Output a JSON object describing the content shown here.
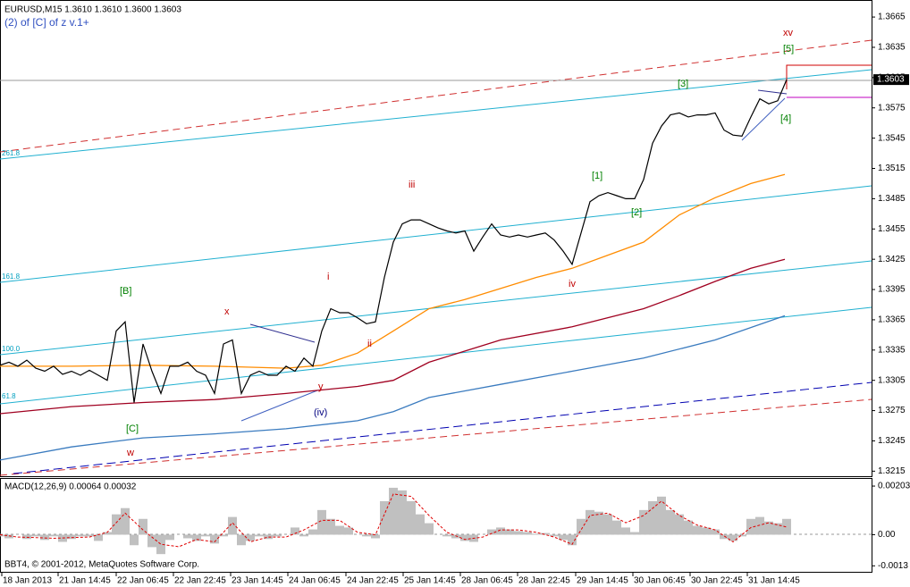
{
  "chart_data": [
    {
      "type": "line",
      "title": "EURUSD,M15  1.3610 1.3610 1.3600 1.3603",
      "subtitle": "(2) of [C] of z v.1+",
      "xlim": [
        0,
        975
      ],
      "ylim": [
        1.321,
        1.3681
      ],
      "yticks": [
        1.3665,
        1.3635,
        1.3605,
        1.3575,
        1.3545,
        1.3515,
        1.3485,
        1.3455,
        1.3425,
        1.3395,
        1.3365,
        1.3335,
        1.3305,
        1.3275,
        1.3245,
        1.3215
      ],
      "xticks": [
        {
          "value": 2,
          "label": "18 Jan 2013"
        },
        {
          "value": 65,
          "label": "21 Jan 14:45"
        },
        {
          "value": 130,
          "label": "22 Jan 06:45"
        },
        {
          "value": 194,
          "label": "22 Jan 22:45"
        },
        {
          "value": 258,
          "label": "23 Jan 14:45"
        },
        {
          "value": 322,
          "label": "24 Jan 06:45"
        },
        {
          "value": 387,
          "label": "24 Jan 22:45"
        },
        {
          "value": 451,
          "label": "25 Jan 14:45"
        },
        {
          "value": 515,
          "label": "28 Jan 06:45"
        },
        {
          "value": 579,
          "label": "28 Jan 22:45"
        },
        {
          "value": 644,
          "label": "29 Jan 14:45"
        },
        {
          "value": 708,
          "label": "30 Jan 06:45"
        },
        {
          "value": 772,
          "label": "30 Jan 22:45"
        },
        {
          "value": 836,
          "label": "31 Jan 14:45"
        }
      ],
      "series": [
        {
          "color": "#000000",
          "x": [
            0,
            10,
            20,
            30,
            40,
            50,
            60,
            70,
            80,
            90,
            100,
            110,
            120,
            130,
            140,
            150,
            160,
            170,
            180,
            190,
            200,
            210,
            220,
            230,
            240,
            250,
            260,
            270,
            280,
            290,
            300,
            310,
            320,
            330,
            340,
            350,
            360,
            370,
            380,
            390,
            400,
            410,
            420,
            430,
            440,
            450,
            460,
            470,
            480,
            490,
            500,
            510,
            520,
            530,
            540,
            550,
            560,
            570,
            580,
            590,
            600,
            610,
            620,
            630,
            640,
            650,
            660,
            670,
            680,
            690,
            700,
            710,
            720,
            730,
            740,
            750,
            760,
            770,
            780,
            790,
            800,
            810,
            820,
            830,
            840,
            850,
            860,
            870,
            880
          ],
          "values": [
            1.332,
            1.3323,
            1.3319,
            1.3325,
            1.3317,
            1.3314,
            1.3319,
            1.3311,
            1.3314,
            1.331,
            1.3315,
            1.331,
            1.3305,
            1.3354,
            1.3363,
            1.3283,
            1.3341,
            1.3314,
            1.3292,
            1.3319,
            1.3319,
            1.3323,
            1.3314,
            1.331,
            1.3292,
            1.3341,
            1.3345,
            1.3292,
            1.331,
            1.3314,
            1.331,
            1.331,
            1.3319,
            1.3314,
            1.3327,
            1.3319,
            1.3354,
            1.3376,
            1.3372,
            1.3372,
            1.3367,
            1.3361,
            1.3363,
            1.3407,
            1.3442,
            1.346,
            1.3464,
            1.3464,
            1.346,
            1.3456,
            1.3453,
            1.3451,
            1.3453,
            1.3433,
            1.3447,
            1.346,
            1.3449,
            1.3447,
            1.3449,
            1.3447,
            1.3449,
            1.3451,
            1.3444,
            1.3433,
            1.342,
            1.3451,
            1.3482,
            1.3488,
            1.3491,
            1.3488,
            1.3485,
            1.3485,
            1.3504,
            1.354,
            1.3557,
            1.3568,
            1.357,
            1.3566,
            1.3568,
            1.3568,
            1.357,
            1.3553,
            1.3548,
            1.3547,
            1.3566,
            1.3584,
            1.3579,
            1.3582,
            1.3603
          ]
        },
        {
          "color": "#ff8c00",
          "x": [
            0,
            80,
            160,
            240,
            320,
            360,
            400,
            440,
            480,
            520,
            560,
            600,
            640,
            680,
            720,
            760,
            800,
            840,
            878
          ],
          "values": [
            1.3319,
            1.3319,
            1.332,
            1.3319,
            1.3317,
            1.332,
            1.3332,
            1.3354,
            1.3376,
            1.3385,
            1.3396,
            1.3407,
            1.3416,
            1.3429,
            1.3442,
            1.3469,
            1.3486,
            1.35,
            1.3509
          ]
        },
        {
          "color": "#a00020",
          "x": [
            0,
            80,
            160,
            240,
            320,
            400,
            440,
            480,
            560,
            640,
            720,
            760,
            800,
            840,
            878
          ],
          "values": [
            1.3272,
            1.3279,
            1.3283,
            1.3286,
            1.3292,
            1.3299,
            1.3305,
            1.3323,
            1.3345,
            1.3358,
            1.3376,
            1.3389,
            1.3403,
            1.3416,
            1.3425
          ]
        },
        {
          "color": "#3a7bbf",
          "x": [
            0,
            80,
            160,
            240,
            320,
            400,
            440,
            480,
            560,
            640,
            720,
            800,
            878
          ],
          "values": [
            1.3226,
            1.3239,
            1.3248,
            1.3252,
            1.3257,
            1.3265,
            1.3274,
            1.3288,
            1.3301,
            1.3314,
            1.3327,
            1.3345,
            1.3369
          ]
        }
      ],
      "annotations": [
        {
          "text": "xv",
          "color": "#c00000"
        },
        {
          "text": "[5]",
          "color": "#008000"
        },
        {
          "text": "[3]",
          "color": "#008000"
        },
        {
          "text": "[4]",
          "color": "#008000"
        },
        {
          "text": "[1]",
          "color": "#008000"
        },
        {
          "text": "[2]",
          "color": "#008000"
        },
        {
          "text": "iii",
          "color": "#c00000"
        },
        {
          "text": "iv",
          "color": "#c00000"
        },
        {
          "text": "i",
          "color": "#c00000"
        },
        {
          "text": "ii",
          "color": "#c00000"
        },
        {
          "text": "x",
          "color": "#c00000"
        },
        {
          "text": "y",
          "color": "#c00000"
        },
        {
          "text": "(iv)",
          "color": "#000080"
        },
        {
          "text": "[B]",
          "color": "#008000"
        },
        {
          "text": "[C]",
          "color": "#008000"
        },
        {
          "text": "w",
          "color": "#c00000"
        },
        {
          "text": "261.8",
          "color": "#00a0c0"
        },
        {
          "text": "161.8",
          "color": "#00a0c0"
        },
        {
          "text": "100.0",
          "color": "#00a0c0"
        },
        {
          "text": "61.8",
          "color": "#00a0c0"
        }
      ]
    },
    {
      "type": "macd",
      "title": "MACD(12,26,9) 0.00064 0.00032",
      "xlim": [
        0,
        975
      ],
      "ylim": [
        -0.00155,
        0.00233
      ],
      "yticks": [
        0.00203,
        {
          "value": 0,
          "label": "0.00"
        },
        -0.0013
      ],
      "series": [
        {
          "color": "#c0c0c0",
          "x": [
            0,
            10,
            20,
            30,
            40,
            50,
            60,
            70,
            80,
            90,
            100,
            110,
            120,
            130,
            140,
            150,
            160,
            170,
            180,
            190,
            200,
            210,
            220,
            230,
            240,
            250,
            260,
            270,
            280,
            290,
            300,
            310,
            320,
            330,
            340,
            350,
            360,
            370,
            380,
            390,
            400,
            410,
            420,
            430,
            440,
            450,
            460,
            470,
            480,
            490,
            500,
            510,
            520,
            530,
            540,
            550,
            560,
            570,
            580,
            590,
            600,
            610,
            620,
            630,
            640,
            650,
            660,
            670,
            680,
            690,
            700,
            710,
            720,
            730,
            740,
            750,
            760,
            770,
            780,
            790,
            800,
            810,
            820,
            830,
            840,
            850,
            860,
            870,
            880
          ],
          "values": [
            -7e-05,
            -0.00015,
            0,
            -0.00018,
            -7e-05,
            -0.00022,
            -7e-05,
            -0.0003,
            -0.00018,
            -7e-05,
            -7e-05,
            -0.00026,
            0.00011,
            0.00085,
            0.00111,
            -0.00044,
            0.00066,
            -0.00052,
            -0.00081,
            -0.00022,
            0,
            -0.00015,
            -0.00026,
            -7e-05,
            -0.00037,
            -7e-05,
            0.00074,
            -0.00044,
            -0.00026,
            -7e-05,
            -0.00018,
            -7e-05,
            0,
            0.0003,
            -7e-05,
            0.00022,
            0.00103,
            0.00066,
            0.00037,
            0.0003,
            0,
            -7e-05,
            -0.00015,
            0.0014,
            0.00196,
            0.00185,
            0.0014,
            0.00085,
            0.00048,
            0,
            -7e-05,
            -0.00015,
            -0.00026,
            -0.0003,
            0,
            0.00022,
            0.0003,
            0.00022,
            0.00015,
            0.00011,
            4e-05,
            7e-05,
            -7e-05,
            -0.00022,
            -0.00044,
            0.00066,
            0.00103,
            0.00096,
            0.00085,
            0.00059,
            0.0003,
            0.00011,
            0.00103,
            0.0014,
            0.00159,
            0.00103,
            0.00085,
            0.00059,
            0.00037,
            0.0003,
            0.00022,
            -0.00018,
            -0.00026,
            -7e-05,
            0.00066,
            0.00074,
            0.00055,
            0.00048,
            0.00066
          ]
        },
        {
          "color": "#e00000",
          "x": [
            0,
            20,
            40,
            60,
            80,
            100,
            120,
            140,
            160,
            180,
            200,
            220,
            240,
            260,
            280,
            300,
            320,
            340,
            360,
            380,
            400,
            420,
            440,
            460,
            480,
            500,
            520,
            540,
            560,
            580,
            600,
            620,
            640,
            660,
            680,
            700,
            720,
            740,
            760,
            780,
            800,
            820,
            840,
            860,
            880
          ],
          "values": [
            0,
            -0.0001,
            -0.00012,
            -0.00015,
            -0.00012,
            -0.0001,
            0.0001,
            0.0009,
            0.0002,
            -0.0004,
            -0.0005,
            -0.0002,
            -0.0003,
            0.0005,
            -0.0003,
            -0.0001,
            -0.0001,
            0.0002,
            0.0006,
            0.0006,
            0.0001,
            0,
            0.0017,
            0.0016,
            0.0008,
            0.0001,
            -0.0002,
            -0.0001,
            0.0002,
            0.0002,
            0.0001,
            -0.0001,
            -0.0004,
            0.0008,
            0.0009,
            0.0005,
            0.0008,
            0.0014,
            0.0008,
            0.0004,
            0.0002,
            -0.0003,
            0.0003,
            0.0005,
            0.00032
          ]
        }
      ],
      "footer": "BBT4, © 2001-2012, MetaQuotes Software Corp."
    }
  ]
}
